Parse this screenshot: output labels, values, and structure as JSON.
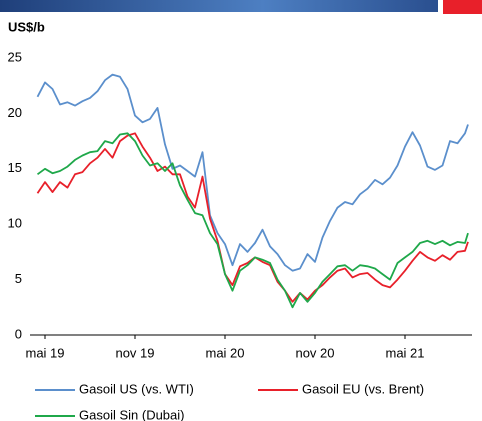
{
  "chart_data": {
    "type": "line",
    "y_label": "US$/b",
    "x": [
      -0.5,
      0,
      0.5,
      1,
      1.5,
      2,
      2.5,
      3,
      3.5,
      4,
      4.5,
      5,
      5.5,
      6,
      6.5,
      7,
      7.5,
      8,
      8.5,
      9,
      9.5,
      10,
      10.5,
      11,
      11.5,
      12,
      12.5,
      13,
      13.5,
      14,
      14.5,
      15,
      15.5,
      16,
      16.5,
      17,
      17.5,
      18,
      18.5,
      19,
      19.5,
      20,
      20.5,
      21,
      21.5,
      22,
      22.5,
      23,
      23.5,
      24,
      24.5,
      25,
      25.5,
      26,
      26.5,
      27,
      27.5,
      28,
      28.2
    ],
    "series": [
      {
        "name": "Gasoil US (vs. WTI)",
        "color": "#5b8fcc",
        "values": [
          21.5,
          22.8,
          22.2,
          20.8,
          21,
          20.7,
          21.1,
          21.4,
          22,
          23,
          23.5,
          23.3,
          22.2,
          19.8,
          19.2,
          19.5,
          20.5,
          17.2,
          15,
          15.3,
          14.8,
          14.3,
          16.5,
          10.8,
          9.2,
          8.2,
          6.3,
          8.2,
          7.5,
          8.3,
          9.5,
          8,
          7.3,
          6.3,
          5.8,
          6,
          7.3,
          6.6,
          8.8,
          10.3,
          11.5,
          12,
          11.8,
          12.7,
          13.2,
          14,
          13.6,
          14.2,
          15.3,
          17,
          18.3,
          17.1,
          15.2,
          14.9,
          15.3,
          17.5,
          17.3,
          18.2,
          19
        ]
      },
      {
        "name": "Gasoil EU (vs. Brent)",
        "color": "#e8202a",
        "values": [
          12.8,
          13.8,
          12.9,
          13.8,
          13.3,
          14.5,
          14.7,
          15.5,
          16,
          16.8,
          16,
          17.5,
          18,
          18.2,
          17,
          16,
          14.8,
          15.2,
          14.5,
          14.5,
          12.5,
          11.5,
          14.3,
          10.5,
          8.5,
          5.5,
          4.5,
          6.2,
          6.5,
          7,
          6.6,
          6.3,
          4.8,
          4,
          3,
          3.8,
          3.2,
          4,
          4.5,
          5.2,
          5.8,
          6,
          5.2,
          5.5,
          5.6,
          5,
          4.5,
          4.3,
          5,
          5.8,
          6.7,
          7.5,
          7,
          6.7,
          7.2,
          6.8,
          7.5,
          7.6,
          8.4
        ]
      },
      {
        "name": "Gasoil Sin (Dubai)",
        "color": "#1fa84a",
        "values": [
          14.5,
          15,
          14.6,
          14.8,
          15.2,
          15.8,
          16.2,
          16.5,
          16.6,
          17.5,
          17.3,
          18.1,
          18.2,
          17.5,
          16.2,
          15.3,
          15.5,
          14.8,
          15.5,
          13.5,
          12.2,
          11,
          10.8,
          9.2,
          8.2,
          5.5,
          4,
          5.8,
          6.3,
          7,
          6.8,
          6.5,
          5,
          4,
          2.5,
          3.8,
          3,
          3.8,
          4.8,
          5.5,
          6.2,
          6.3,
          5.8,
          6.3,
          6.2,
          6,
          5.5,
          5,
          6.5,
          7,
          7.5,
          8.3,
          8.5,
          8.2,
          8.5,
          8.1,
          8.4,
          8.3,
          9.2
        ]
      }
    ],
    "xlim": [
      -1,
      28.5
    ],
    "xticks": [
      {
        "value": 0,
        "label": "mai 19"
      },
      {
        "value": 6,
        "label": "nov 19"
      },
      {
        "value": 12,
        "label": "mai 20"
      },
      {
        "value": 18,
        "label": "nov 20"
      },
      {
        "value": 24,
        "label": "mai 21"
      }
    ],
    "ylim": [
      0,
      25
    ],
    "yticks": [
      0,
      5,
      10,
      15,
      20,
      25
    ],
    "grid": false
  }
}
